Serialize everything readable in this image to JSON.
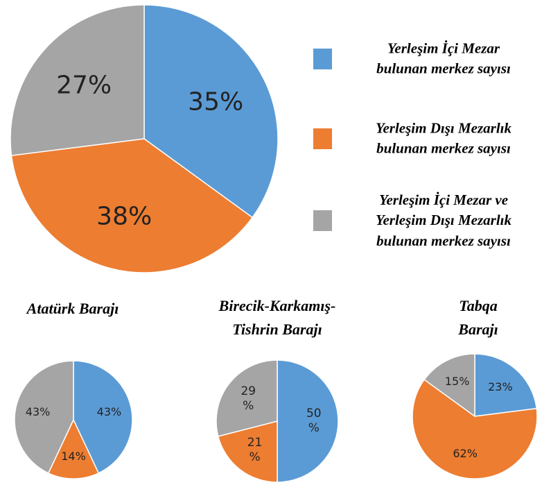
{
  "chart_data": [
    {
      "type": "pie",
      "categories": [
        "Yerleşim İçi Mezar\nbulunan merkez sayısı",
        "Yerleşim Dışı Mezarlık\nbulunan merkez sayısı",
        "Yerleşim İçi Mezar ve\nYerleşim Dışı Mezarlık\nbulunan merkez sayısı"
      ],
      "values": [
        35,
        38,
        27
      ],
      "value_labels": [
        "35%",
        "38%",
        "27%"
      ],
      "colors": [
        "#5b9bd5",
        "#ed7d31",
        "#a5a5a5"
      ]
    },
    {
      "type": "pie",
      "title": "Atatürk Barajı",
      "values": [
        43,
        14,
        43
      ],
      "value_labels": [
        "43%",
        "14%",
        "43%"
      ]
    },
    {
      "type": "pie",
      "title": "Birecik-Karkamış-\nTishrin Barajı",
      "values": [
        50,
        21,
        29
      ],
      "value_labels": [
        "50\n%",
        "21\n%",
        "29\n%"
      ]
    },
    {
      "type": "pie",
      "title": "Tabqa Barajı",
      "values": [
        23,
        62,
        15
      ],
      "value_labels": [
        "23%",
        "62%",
        "15%"
      ]
    }
  ]
}
